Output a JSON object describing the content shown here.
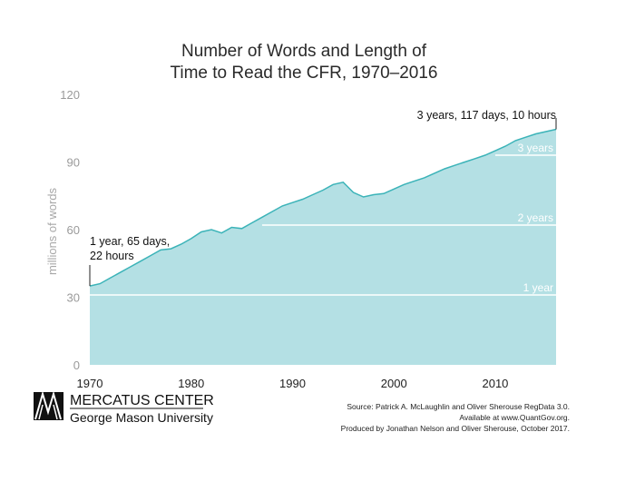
{
  "chart_data": {
    "type": "area",
    "title_lines": [
      "Number of Words and Length of",
      "Time to Read the CFR, 1970–2016"
    ],
    "ylabel": "millions of words",
    "xlabel": "",
    "xlim": [
      1970,
      2016
    ],
    "ylim": [
      0,
      120
    ],
    "y_ticks": [
      0,
      30,
      60,
      90,
      120
    ],
    "x_ticks": [
      1970,
      1980,
      1990,
      2000,
      2010
    ],
    "grid": false,
    "colors": {
      "fill": "#b4e0e4",
      "line": "#3bb3b8",
      "threshold": "#ffffff"
    },
    "series": [
      {
        "name": "millions of words",
        "x": [
          1970,
          1971,
          1972,
          1973,
          1974,
          1975,
          1976,
          1977,
          1978,
          1979,
          1980,
          1981,
          1982,
          1983,
          1984,
          1985,
          1986,
          1987,
          1988,
          1989,
          1990,
          1991,
          1992,
          1993,
          1994,
          1995,
          1996,
          1997,
          1998,
          1999,
          2000,
          2001,
          2002,
          2003,
          2004,
          2005,
          2006,
          2007,
          2008,
          2009,
          2010,
          2011,
          2012,
          2013,
          2014,
          2015,
          2016
        ],
        "values": [
          35,
          36,
          38.5,
          41,
          43.5,
          46,
          48.5,
          51,
          51.5,
          53.5,
          56,
          59,
          60,
          58.5,
          61,
          60.5,
          63,
          65.5,
          68,
          70.5,
          72,
          73.5,
          75.5,
          77.5,
          80,
          81,
          76.5,
          74.5,
          75.5,
          76,
          78,
          80,
          81.5,
          83,
          85,
          87,
          88.5,
          90,
          91.5,
          93,
          95,
          97,
          99.5,
          101,
          102.5,
          103.5,
          104.5
        ]
      }
    ],
    "thresholds": [
      {
        "label": "1 year",
        "value": 31
      },
      {
        "label": "2 years",
        "value": 62
      },
      {
        "label": "3 years",
        "value": 93
      }
    ],
    "annotations": [
      {
        "lines": [
          "1 year, 65 days,",
          "22 hours"
        ],
        "x": 1970
      },
      {
        "lines": [
          "3 years, 117 days, 10 hours"
        ],
        "x": 2016
      }
    ]
  },
  "logo": {
    "main": "MERCATUS CENTER",
    "sub": "George Mason University"
  },
  "source_lines": [
    "Source: Patrick A. McLaughlin and Oliver Sherouse RegData 3.0.",
    "Available at www.QuantGov.org.",
    "Produced by Jonathan Nelson and Oliver Sherouse, October 2017."
  ]
}
